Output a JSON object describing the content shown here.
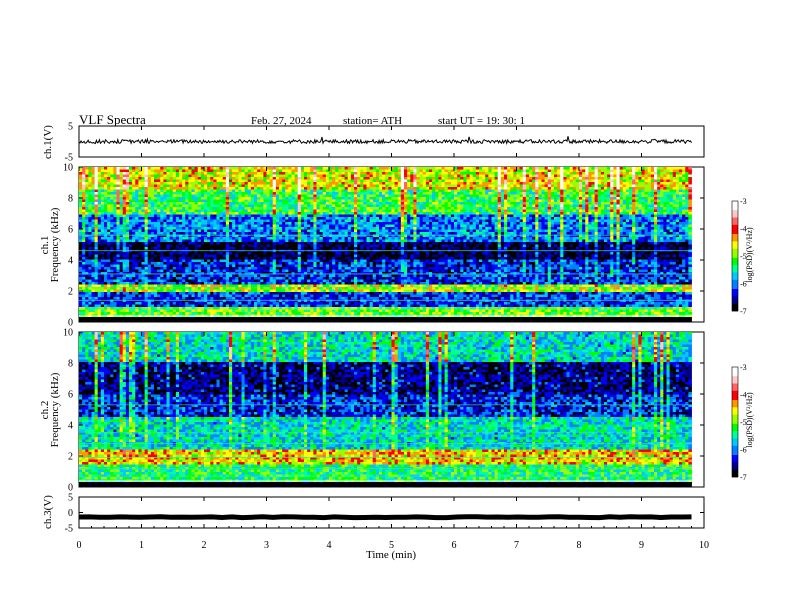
{
  "header": {
    "title": "VLF  Spectra",
    "date": "Feb. 27, 2024",
    "station": "station= ATH",
    "start": "start  UT  =    19: 30: 1"
  },
  "panels": {
    "ch1_waveform": {
      "ylabel": "ch.1(V)",
      "ylim": [
        -5,
        5
      ],
      "ticks": [
        "5",
        "-5"
      ]
    },
    "ch1_spectrogram": {
      "ylabel_top": "ch.1",
      "ylabel": "Frequency  (kHz)",
      "ylim": [
        0,
        10
      ],
      "ticks": [
        "0",
        "2",
        "4",
        "6",
        "8",
        "10"
      ]
    },
    "ch2_spectrogram": {
      "ylabel_top": "ch.2",
      "ylabel": "Frequency  (kHz)",
      "ylim": [
        0,
        10
      ],
      "ticks": [
        "0",
        "2",
        "4",
        "6",
        "8",
        "10"
      ]
    },
    "ch3_waveform": {
      "ylabel": "ch.3(V)",
      "ylim": [
        -5,
        5
      ],
      "ticks": [
        "5",
        "0",
        "-5"
      ]
    }
  },
  "xaxis": {
    "label": "Time  (min)",
    "xlim": [
      0,
      10
    ],
    "ticks": [
      "0",
      "1",
      "2",
      "3",
      "4",
      "5",
      "6",
      "7",
      "8",
      "9",
      "10"
    ]
  },
  "colorbar": {
    "label": "log(PSD)(V²/Hz)",
    "ticks": [
      "-3",
      "-4",
      "-5",
      "-6",
      "-7"
    ],
    "colors": [
      "#000000",
      "#00008b",
      "#0000ff",
      "#0080ff",
      "#00c8ff",
      "#00ff96",
      "#00ff00",
      "#96ff00",
      "#ffff00",
      "#ff9600",
      "#ff0000",
      "#ff6464",
      "#ffc8c8",
      "#ffffff"
    ]
  },
  "chart_data": [
    {
      "type": "line",
      "panel": "ch.1(V)",
      "x_range": [
        0,
        9.8
      ],
      "approx_mean": 0,
      "approx_amplitude": 0.6,
      "ylim": [
        -5,
        5
      ]
    },
    {
      "type": "heatmap",
      "panel": "ch.1",
      "xlabel": "Time  (min)",
      "ylabel": "Frequency  (kHz)",
      "xlim": [
        0,
        9.8
      ],
      "ylim": [
        0,
        10
      ],
      "color_scale": "log(PSD)(V²/Hz)",
      "c_range": [
        -7,
        -3
      ],
      "band_levels": [
        {
          "f_khz": [
            0,
            0.3
          ],
          "log_psd": -7
        },
        {
          "f_khz": [
            0.3,
            1.0
          ],
          "log_psd": -5.0
        },
        {
          "f_khz": [
            1.0,
            2.0
          ],
          "log_psd": -6.2
        },
        {
          "f_khz": [
            2.0,
            2.4
          ],
          "log_psd": -4.8
        },
        {
          "f_khz": [
            2.4,
            4.0
          ],
          "log_psd": -6.3
        },
        {
          "f_khz": [
            4.0,
            5.2
          ],
          "log_psd": -6.8
        },
        {
          "f_khz": [
            5.2,
            7.0
          ],
          "log_psd": -6.0
        },
        {
          "f_khz": [
            7.0,
            8.5
          ],
          "log_psd": -5.2
        },
        {
          "f_khz": [
            8.5,
            10.0
          ],
          "log_psd": -4.6
        }
      ]
    },
    {
      "type": "heatmap",
      "panel": "ch.2",
      "xlabel": "Time  (min)",
      "ylabel": "Frequency  (kHz)",
      "xlim": [
        0,
        9.8
      ],
      "ylim": [
        0,
        10
      ],
      "color_scale": "log(PSD)(V²/Hz)",
      "c_range": [
        -7,
        -3
      ],
      "band_levels": [
        {
          "f_khz": [
            0,
            0.3
          ],
          "log_psd": -7
        },
        {
          "f_khz": [
            0.3,
            1.5
          ],
          "log_psd": -5.3
        },
        {
          "f_khz": [
            1.5,
            2.4
          ],
          "log_psd": -4.5
        },
        {
          "f_khz": [
            2.4,
            4.5
          ],
          "log_psd": -5.6
        },
        {
          "f_khz": [
            4.5,
            6.0
          ],
          "log_psd": -6.3
        },
        {
          "f_khz": [
            6.0,
            8.0
          ],
          "log_psd": -6.6
        },
        {
          "f_khz": [
            8.0,
            10.0
          ],
          "log_psd": -5.6
        }
      ]
    },
    {
      "type": "line",
      "panel": "ch.3(V)",
      "x_range": [
        0,
        9.8
      ],
      "approx_mean": -1.5,
      "approx_amplitude": 0.15,
      "ylim": [
        -5,
        5
      ]
    }
  ]
}
